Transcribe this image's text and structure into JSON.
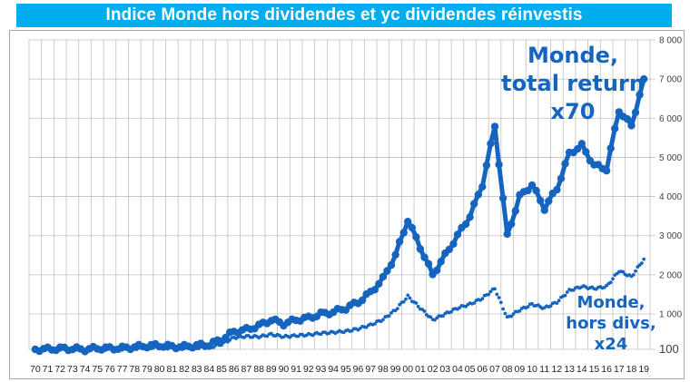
{
  "title": "Indice Monde hors dividendes et yc dividendes réinvestis",
  "colors": {
    "title_bg": "#00aeef",
    "title_text": "#ffffff",
    "series": "#1565c0",
    "grid": "#bfbfbf"
  },
  "annotations": {
    "total": [
      "Monde,",
      "total return",
      "x70"
    ],
    "hors": [
      "Monde,",
      "hors divs,",
      "x24"
    ]
  },
  "chart_data": {
    "type": "line",
    "title": "Indice Monde hors dividendes et yc dividendes réinvestis",
    "xlabel": "",
    "ylabel": "",
    "y_tick_labels": [
      "100",
      "1 000",
      "2 000",
      "3 000",
      "4 000",
      "5 000",
      "6 000",
      "7 000",
      "8 000"
    ],
    "y_tick_values": [
      100,
      1000,
      2000,
      3000,
      4000,
      5000,
      6000,
      7000,
      8000
    ],
    "ylim": [
      100,
      8000
    ],
    "y_axis_position": "right",
    "grid": true,
    "legend": "none (inline annotations)",
    "categories": [
      "70",
      "71",
      "72",
      "73",
      "74",
      "75",
      "76",
      "77",
      "78",
      "79",
      "80",
      "81",
      "82",
      "83",
      "84",
      "85",
      "86",
      "87",
      "88",
      "89",
      "90",
      "91",
      "92",
      "93",
      "94",
      "95",
      "96",
      "97",
      "98",
      "99",
      "00",
      "01",
      "02",
      "03",
      "04",
      "05",
      "06",
      "07",
      "08",
      "09",
      "10",
      "11",
      "12",
      "13",
      "14",
      "15",
      "16",
      "17",
      "18",
      "19"
    ],
    "series": [
      {
        "name": "Monde, total return",
        "annotation": "x70",
        "marker": "large dots",
        "values": [
          100,
          105,
          120,
          115,
          95,
          130,
          125,
          130,
          160,
          190,
          200,
          170,
          170,
          200,
          220,
          350,
          550,
          600,
          700,
          850,
          750,
          850,
          900,
          1000,
          1050,
          1150,
          1300,
          1550,
          1900,
          2500,
          3400,
          2700,
          2000,
          2500,
          3000,
          3500,
          4300,
          5800,
          3000,
          4000,
          4300,
          3700,
          4200,
          5100,
          5300,
          4800,
          4700,
          6200,
          5800,
          7000
        ]
      },
      {
        "name": "Monde, hors divs",
        "annotation": "x24",
        "marker": "small dots",
        "values": [
          100,
          100,
          110,
          105,
          90,
          110,
          105,
          105,
          125,
          140,
          150,
          130,
          125,
          140,
          150,
          230,
          400,
          430,
          420,
          480,
          420,
          450,
          470,
          510,
          530,
          560,
          620,
          720,
          860,
          1100,
          1450,
          1150,
          850,
          1000,
          1150,
          1250,
          1400,
          1650,
          900,
          1100,
          1250,
          1150,
          1300,
          1600,
          1700,
          1650,
          1700,
          2100,
          1950,
          2400
        ]
      }
    ]
  }
}
